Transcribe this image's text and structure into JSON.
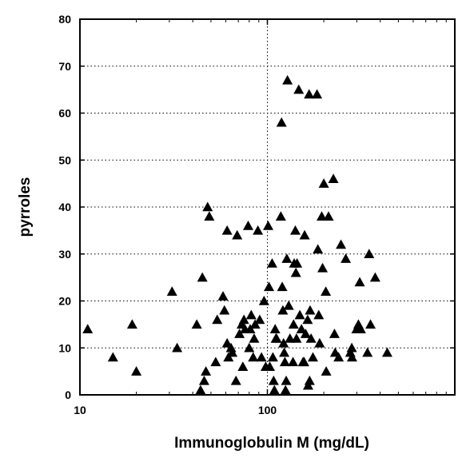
{
  "chart_data": {
    "type": "scatter",
    "title": "",
    "xlabel": "Immunoglobulin M (mg/dL)",
    "ylabel": "pyrroles",
    "x_scale": "log",
    "xlim": [
      10,
      1000
    ],
    "ylim": [
      0,
      80
    ],
    "x_ticks": [
      10,
      100
    ],
    "x_tick_labels": [
      "10",
      "100"
    ],
    "y_ticks": [
      0,
      10,
      20,
      30,
      40,
      50,
      60,
      70,
      80
    ],
    "y_tick_labels": [
      "0",
      "10",
      "20",
      "30",
      "40",
      "50",
      "60",
      "70",
      "80"
    ],
    "grid": "dotted major gridlines",
    "marker": "filled-triangle",
    "marker_color": "#000000",
    "points": [
      {
        "x": 11,
        "y": 14
      },
      {
        "x": 15,
        "y": 8
      },
      {
        "x": 19,
        "y": 15
      },
      {
        "x": 20,
        "y": 5
      },
      {
        "x": 31,
        "y": 22
      },
      {
        "x": 33,
        "y": 10
      },
      {
        "x": 42,
        "y": 15
      },
      {
        "x": 44,
        "y": 1
      },
      {
        "x": 45,
        "y": 25
      },
      {
        "x": 46,
        "y": 3
      },
      {
        "x": 47,
        "y": 5
      },
      {
        "x": 48,
        "y": 40
      },
      {
        "x": 49,
        "y": 38
      },
      {
        "x": 53,
        "y": 7
      },
      {
        "x": 54,
        "y": 16
      },
      {
        "x": 58,
        "y": 21
      },
      {
        "x": 59,
        "y": 18
      },
      {
        "x": 61,
        "y": 35
      },
      {
        "x": 61,
        "y": 11
      },
      {
        "x": 62,
        "y": 8
      },
      {
        "x": 64,
        "y": 10
      },
      {
        "x": 65,
        "y": 9
      },
      {
        "x": 68,
        "y": 3
      },
      {
        "x": 69,
        "y": 34
      },
      {
        "x": 71,
        "y": 13
      },
      {
        "x": 73,
        "y": 15
      },
      {
        "x": 74,
        "y": 6
      },
      {
        "x": 75,
        "y": 16
      },
      {
        "x": 76,
        "y": 14
      },
      {
        "x": 79,
        "y": 36
      },
      {
        "x": 80,
        "y": 10
      },
      {
        "x": 81,
        "y": 14
      },
      {
        "x": 82,
        "y": 17
      },
      {
        "x": 84,
        "y": 8
      },
      {
        "x": 85,
        "y": 12
      },
      {
        "x": 86,
        "y": 15
      },
      {
        "x": 89,
        "y": 35
      },
      {
        "x": 91,
        "y": 16
      },
      {
        "x": 93,
        "y": 8
      },
      {
        "x": 96,
        "y": 20
      },
      {
        "x": 98,
        "y": 6
      },
      {
        "x": 101,
        "y": 36
      },
      {
        "x": 102,
        "y": 23
      },
      {
        "x": 103,
        "y": 6
      },
      {
        "x": 106,
        "y": 28
      },
      {
        "x": 107,
        "y": 8
      },
      {
        "x": 108,
        "y": 3
      },
      {
        "x": 109,
        "y": 1
      },
      {
        "x": 110,
        "y": 14
      },
      {
        "x": 111,
        "y": 12
      },
      {
        "x": 112,
        "y": 12
      },
      {
        "x": 118,
        "y": 38
      },
      {
        "x": 119,
        "y": 58
      },
      {
        "x": 120,
        "y": 23
      },
      {
        "x": 121,
        "y": 18
      },
      {
        "x": 122,
        "y": 11
      },
      {
        "x": 123,
        "y": 9
      },
      {
        "x": 124,
        "y": 7
      },
      {
        "x": 125,
        "y": 1
      },
      {
        "x": 126,
        "y": 3
      },
      {
        "x": 127,
        "y": 29
      },
      {
        "x": 128,
        "y": 67
      },
      {
        "x": 130,
        "y": 19
      },
      {
        "x": 132,
        "y": 12
      },
      {
        "x": 137,
        "y": 7
      },
      {
        "x": 138,
        "y": 15
      },
      {
        "x": 139,
        "y": 28
      },
      {
        "x": 141,
        "y": 35
      },
      {
        "x": 142,
        "y": 26
      },
      {
        "x": 143,
        "y": 12
      },
      {
        "x": 144,
        "y": 28
      },
      {
        "x": 147,
        "y": 65
      },
      {
        "x": 149,
        "y": 17
      },
      {
        "x": 152,
        "y": 14
      },
      {
        "x": 155,
        "y": 7
      },
      {
        "x": 157,
        "y": 7
      },
      {
        "x": 158,
        "y": 34
      },
      {
        "x": 160,
        "y": 13
      },
      {
        "x": 164,
        "y": 16
      },
      {
        "x": 165,
        "y": 2
      },
      {
        "x": 167,
        "y": 64
      },
      {
        "x": 168,
        "y": 3
      },
      {
        "x": 169,
        "y": 18
      },
      {
        "x": 171,
        "y": 12
      },
      {
        "x": 175,
        "y": 8
      },
      {
        "x": 184,
        "y": 64
      },
      {
        "x": 186,
        "y": 31
      },
      {
        "x": 188,
        "y": 17
      },
      {
        "x": 190,
        "y": 11
      },
      {
        "x": 195,
        "y": 38
      },
      {
        "x": 197,
        "y": 27
      },
      {
        "x": 200,
        "y": 45
      },
      {
        "x": 205,
        "y": 22
      },
      {
        "x": 206,
        "y": 5
      },
      {
        "x": 212,
        "y": 38
      },
      {
        "x": 225,
        "y": 46
      },
      {
        "x": 228,
        "y": 13
      },
      {
        "x": 230,
        "y": 9
      },
      {
        "x": 240,
        "y": 8
      },
      {
        "x": 247,
        "y": 32
      },
      {
        "x": 262,
        "y": 29
      },
      {
        "x": 277,
        "y": 9
      },
      {
        "x": 282,
        "y": 10
      },
      {
        "x": 283,
        "y": 8
      },
      {
        "x": 299,
        "y": 14
      },
      {
        "x": 306,
        "y": 15
      },
      {
        "x": 311,
        "y": 24
      },
      {
        "x": 315,
        "y": 14
      },
      {
        "x": 342,
        "y": 9
      },
      {
        "x": 349,
        "y": 30
      },
      {
        "x": 355,
        "y": 15
      },
      {
        "x": 376,
        "y": 25
      },
      {
        "x": 436,
        "y": 9
      }
    ]
  }
}
